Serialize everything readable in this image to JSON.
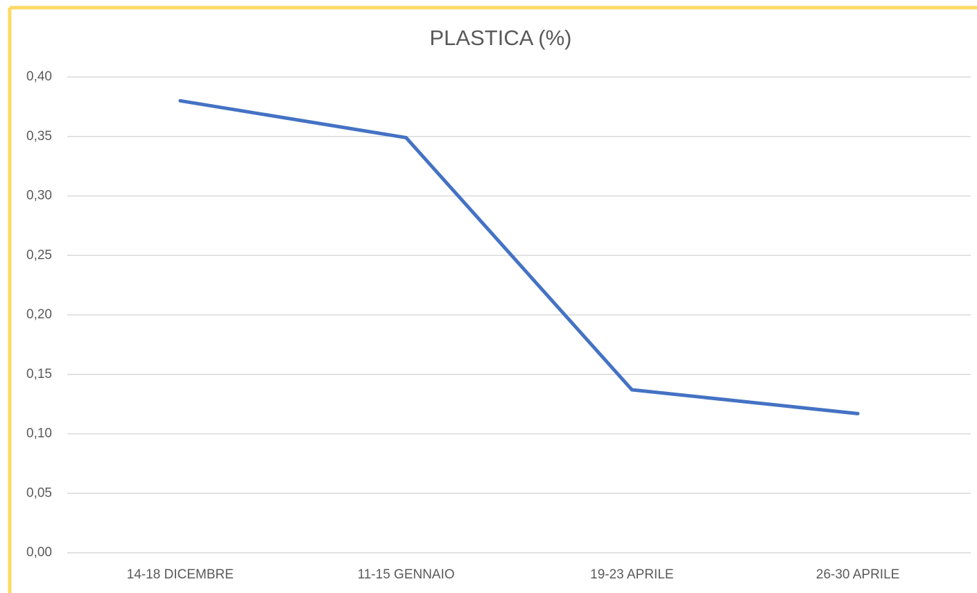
{
  "chart_data": {
    "type": "line",
    "title": "PLASTICA (%)",
    "categories": [
      "14-18 DICEMBRE",
      "11-15 GENNAIO",
      "19-23 APRILE",
      "26-30 APRILE"
    ],
    "series": [
      {
        "name": "PLASTICA (%)",
        "color": "#4472c4",
        "values": [
          0.38,
          0.349,
          0.137,
          0.117
        ]
      }
    ],
    "ylim": [
      0,
      0.4
    ],
    "yticks": [
      {
        "value": 0,
        "label": "0,00"
      },
      {
        "value": 0.05,
        "label": "0,05"
      },
      {
        "value": 0.1,
        "label": "0,10"
      },
      {
        "value": 0.15,
        "label": "0,15"
      },
      {
        "value": 0.2,
        "label": "0,20"
      },
      {
        "value": 0.25,
        "label": "0,25"
      },
      {
        "value": 0.3,
        "label": "0,30"
      },
      {
        "value": 0.35,
        "label": "0,35"
      },
      {
        "value": 0.4,
        "label": "0,40"
      }
    ],
    "grid": true
  }
}
